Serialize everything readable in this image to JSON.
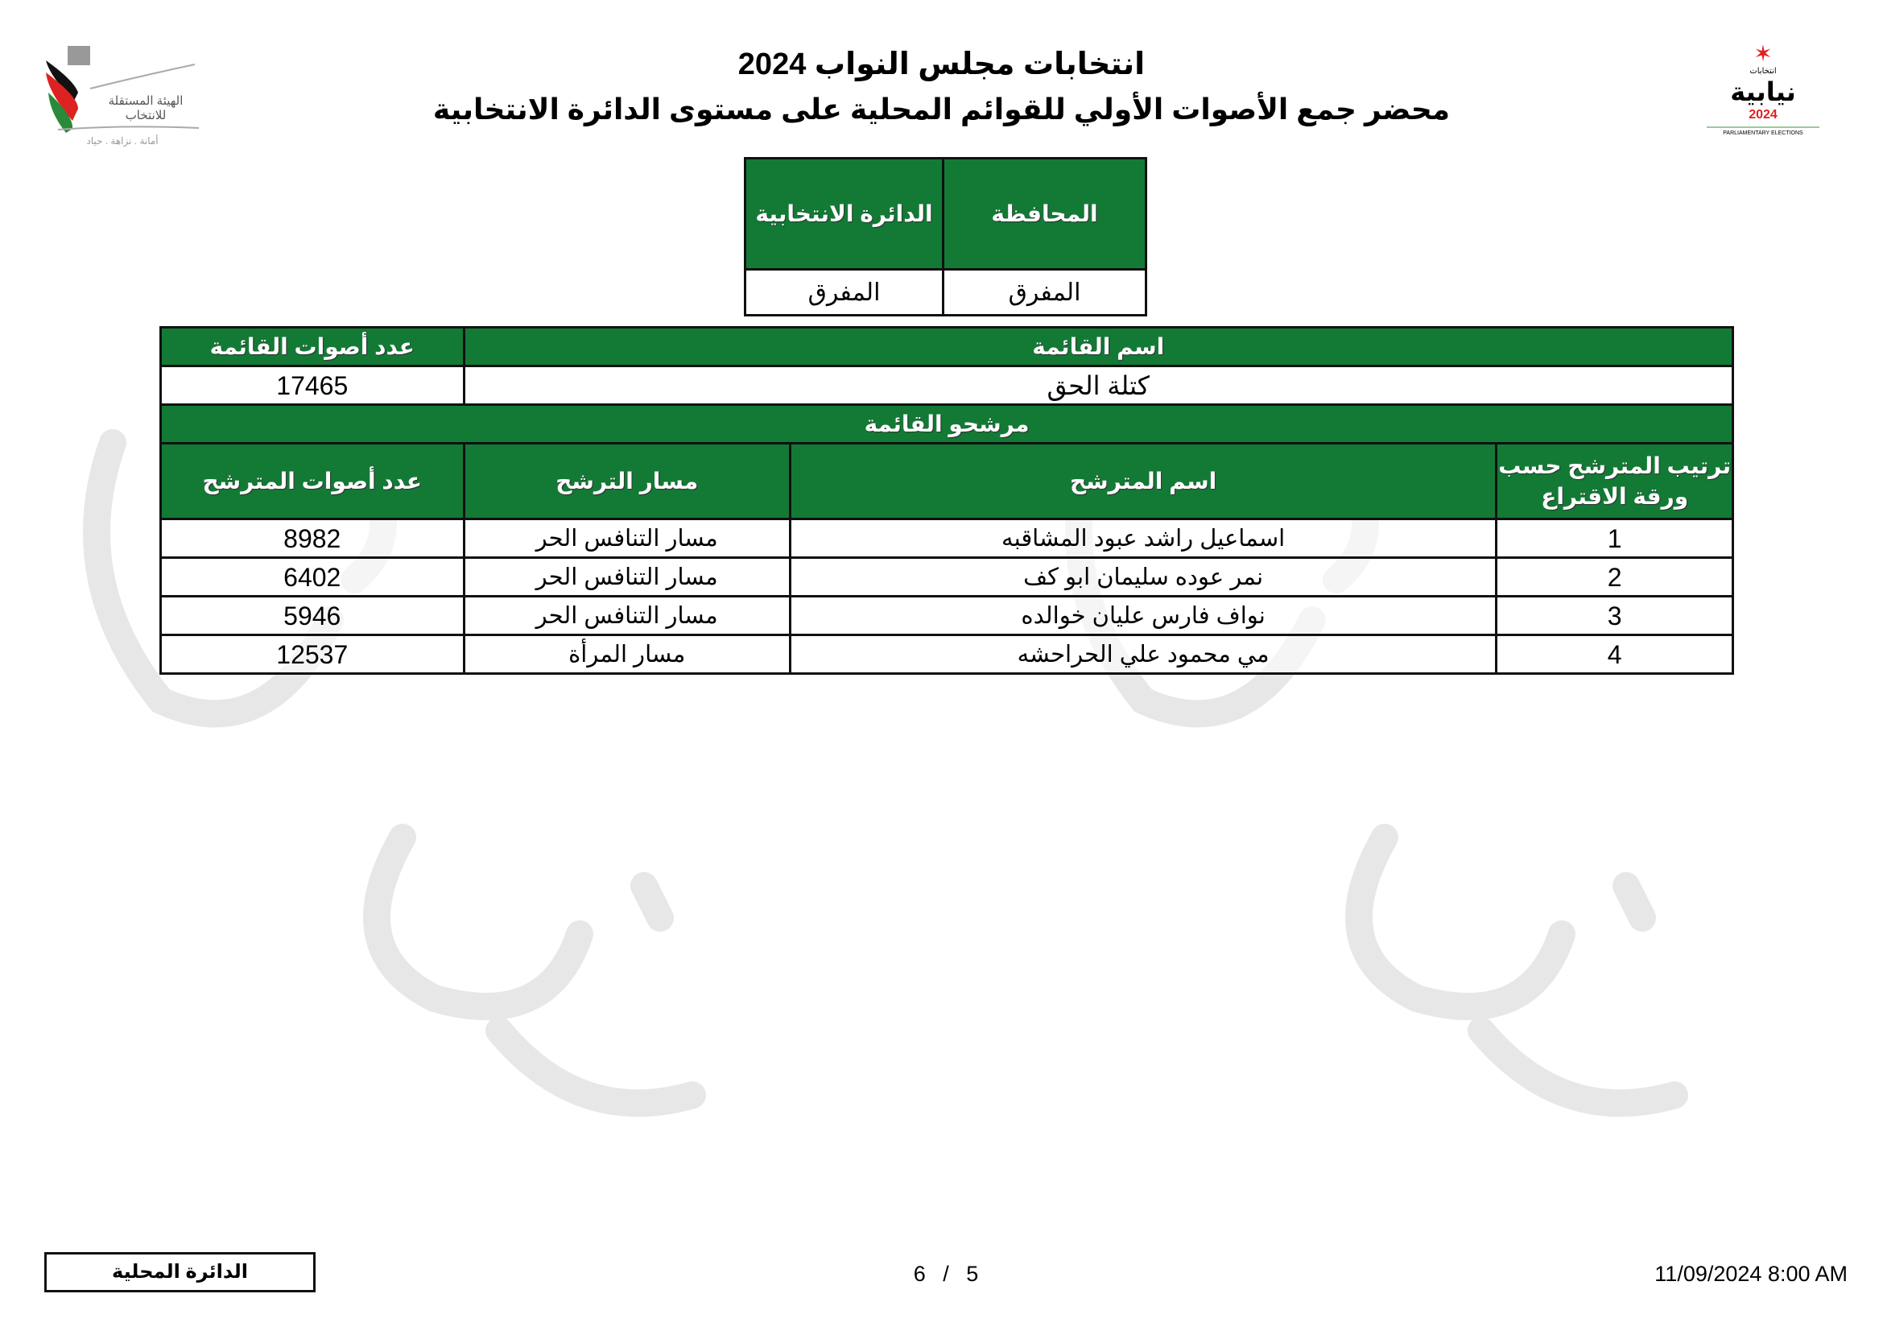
{
  "header": {
    "line1": "انتخابات مجلس النواب 2024",
    "line2": "محضر جمع الأصوات الأولي للقوائم المحلية على مستوى الدائرة الانتخابية"
  },
  "logos": {
    "left": {
      "text1": "الهيئة المستقلة",
      "text2": "للانتخاب",
      "tagline": "أمانة . نزاهة . حياد"
    },
    "right": {
      "text1": "انتخابات",
      "text2": "نيابية",
      "year": "2024",
      "caption": "PARLIAMENTARY ELECTIONS"
    }
  },
  "geo": {
    "governorate_label": "المحافظة",
    "district_label": "الدائرة الانتخابية",
    "governorate": "المفرق",
    "district": "المفرق"
  },
  "list": {
    "name_label": "اسم القائمة",
    "votes_label": "عدد أصوات القائمة",
    "name": "كتلة الحق",
    "votes": "17465",
    "candidates_label": "مرشحو القائمة"
  },
  "candidates": {
    "headers": [
      "ترتيب المترشح حسب ورقة الاقتراع",
      "اسم المترشح",
      "مسار الترشح",
      "عدد أصوات المترشح"
    ],
    "rows": [
      {
        "rank": "1",
        "name": "اسماعيل راشد عبود المشاقبه",
        "track": "مسار التنافس الحر",
        "votes": "8982"
      },
      {
        "rank": "2",
        "name": "نمر عوده سليمان ابو كف",
        "track": "مسار التنافس الحر",
        "votes": "6402"
      },
      {
        "rank": "3",
        "name": "نواف فارس عليان خوالده",
        "track": "مسار التنافس الحر",
        "votes": "5946"
      },
      {
        "rank": "4",
        "name": "مي محمود علي الحراحشه",
        "track": "مسار المرأة",
        "votes": "12537"
      }
    ]
  },
  "footer": {
    "box": "الدائرة المحلية",
    "page": "6 / 5",
    "datetime": "11/09/2024 8:00 AM"
  },
  "colors": {
    "header_green": "#137a36"
  }
}
